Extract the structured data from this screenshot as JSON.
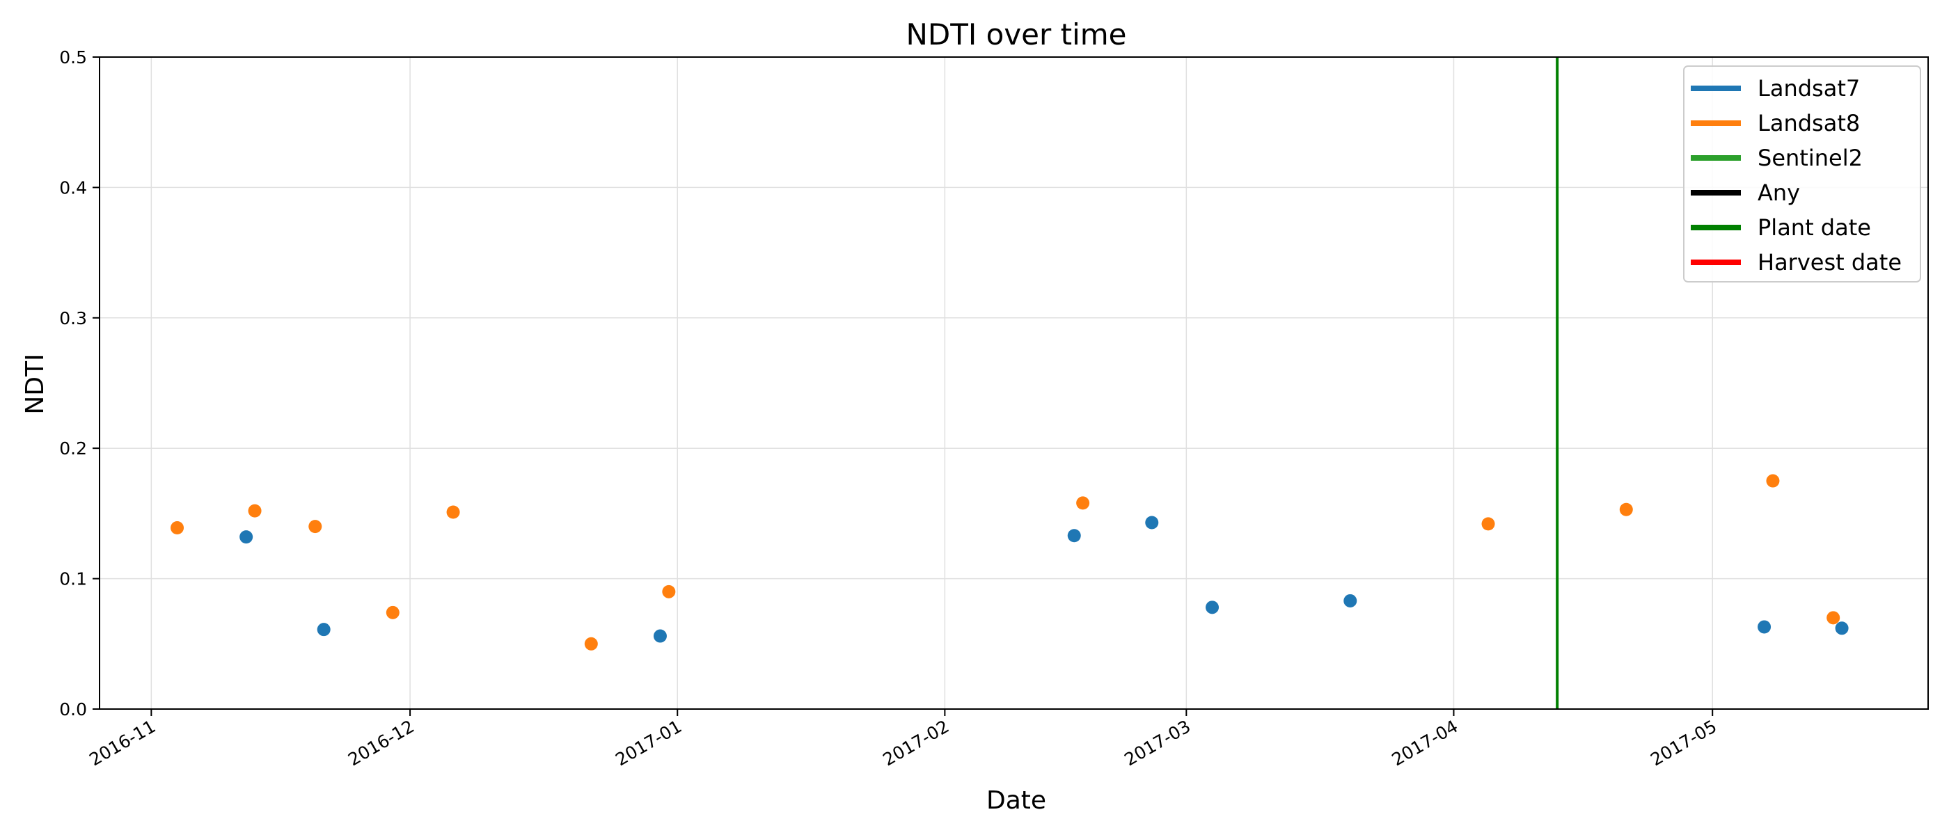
{
  "chart_data": {
    "type": "scatter",
    "title": "NDTI over time",
    "xlabel": "Date",
    "ylabel": "NDTI",
    "xlim": [
      "2016-10-26",
      "2017-05-26"
    ],
    "ylim": [
      0,
      0.5
    ],
    "grid": true,
    "legend_position": "top-right",
    "x_ticks": [
      "2016-11",
      "2016-12",
      "2017-01",
      "2017-02",
      "2017-03",
      "2017-04",
      "2017-05"
    ],
    "x_tick_dates": [
      "2016-11-01",
      "2016-12-01",
      "2017-01-01",
      "2017-02-01",
      "2017-03-01",
      "2017-04-01",
      "2017-05-01"
    ],
    "y_ticks": [
      "0.0",
      "0.1",
      "0.2",
      "0.3",
      "0.4",
      "0.5"
    ],
    "y_tick_values": [
      0,
      0.1,
      0.2,
      0.3,
      0.4,
      0.5
    ],
    "series": [
      {
        "name": "Landsat7",
        "color": "#1f77b4",
        "points": [
          {
            "date": "2016-11-12",
            "y": 0.132
          },
          {
            "date": "2016-11-21",
            "y": 0.061
          },
          {
            "date": "2016-12-30",
            "y": 0.056
          },
          {
            "date": "2017-02-16",
            "y": 0.133
          },
          {
            "date": "2017-02-25",
            "y": 0.143
          },
          {
            "date": "2017-03-04",
            "y": 0.078
          },
          {
            "date": "2017-03-20",
            "y": 0.083
          },
          {
            "date": "2017-05-07",
            "y": 0.063
          },
          {
            "date": "2017-05-16",
            "y": 0.062
          }
        ]
      },
      {
        "name": "Landsat8",
        "color": "#ff7f0e",
        "points": [
          {
            "date": "2016-11-04",
            "y": 0.139
          },
          {
            "date": "2016-11-13",
            "y": 0.152
          },
          {
            "date": "2016-11-20",
            "y": 0.14
          },
          {
            "date": "2016-11-29",
            "y": 0.074
          },
          {
            "date": "2016-12-06",
            "y": 0.151
          },
          {
            "date": "2016-12-22",
            "y": 0.05
          },
          {
            "date": "2016-12-31",
            "y": 0.09
          },
          {
            "date": "2017-02-17",
            "y": 0.158
          },
          {
            "date": "2017-04-05",
            "y": 0.142
          },
          {
            "date": "2017-04-21",
            "y": 0.153
          },
          {
            "date": "2017-05-08",
            "y": 0.175
          },
          {
            "date": "2017-05-15",
            "y": 0.07
          }
        ]
      },
      {
        "name": "Sentinel2",
        "color": "#2ca02c",
        "points": []
      },
      {
        "name": "Any",
        "color": "#000000",
        "points": []
      }
    ],
    "vlines": [
      {
        "name": "Plant date",
        "color": "#008000",
        "date": "2017-04-13"
      }
    ],
    "legend": [
      {
        "label": "Landsat7",
        "color": "#1f77b4"
      },
      {
        "label": "Landsat8",
        "color": "#ff7f0e"
      },
      {
        "label": "Sentinel2",
        "color": "#2ca02c"
      },
      {
        "label": "Any",
        "color": "#000000"
      },
      {
        "label": "Plant date",
        "color": "#008000"
      },
      {
        "label": "Harvest date",
        "color": "#ff0000"
      }
    ]
  }
}
